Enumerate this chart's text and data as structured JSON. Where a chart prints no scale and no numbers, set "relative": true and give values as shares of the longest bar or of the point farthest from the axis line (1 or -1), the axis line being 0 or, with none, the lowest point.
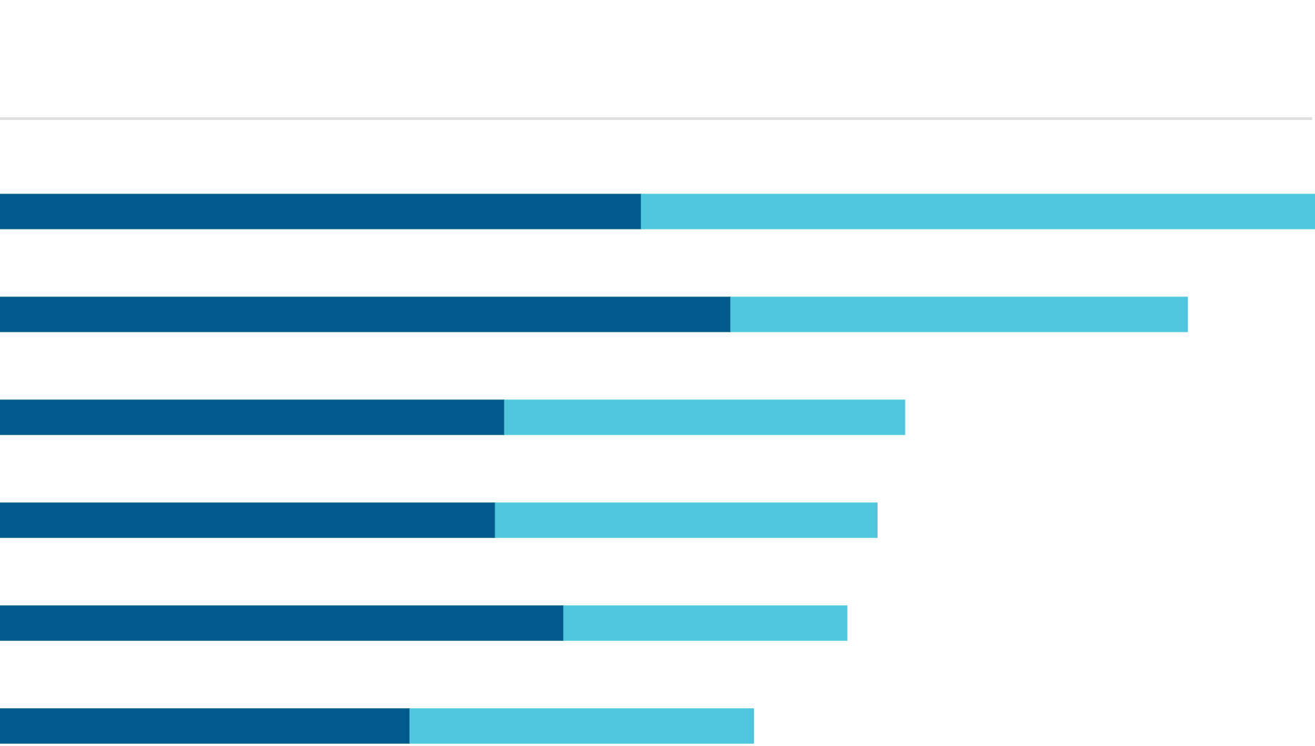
{
  "chart_data": {
    "type": "bar",
    "orientation": "horizontal",
    "stacked": true,
    "relative": true,
    "categories": [
      null,
      null,
      null,
      null,
      null,
      null
    ],
    "series": [
      {
        "color": "#02598c",
        "values": [
          0.487,
          0.555,
          0.383,
          0.376,
          0.428,
          0.311
        ]
      },
      {
        "color": "#4fc6dd",
        "values": [
          0.513,
          0.348,
          0.305,
          0.291,
          0.216,
          0.262
        ]
      }
    ],
    "legend": false
  }
}
